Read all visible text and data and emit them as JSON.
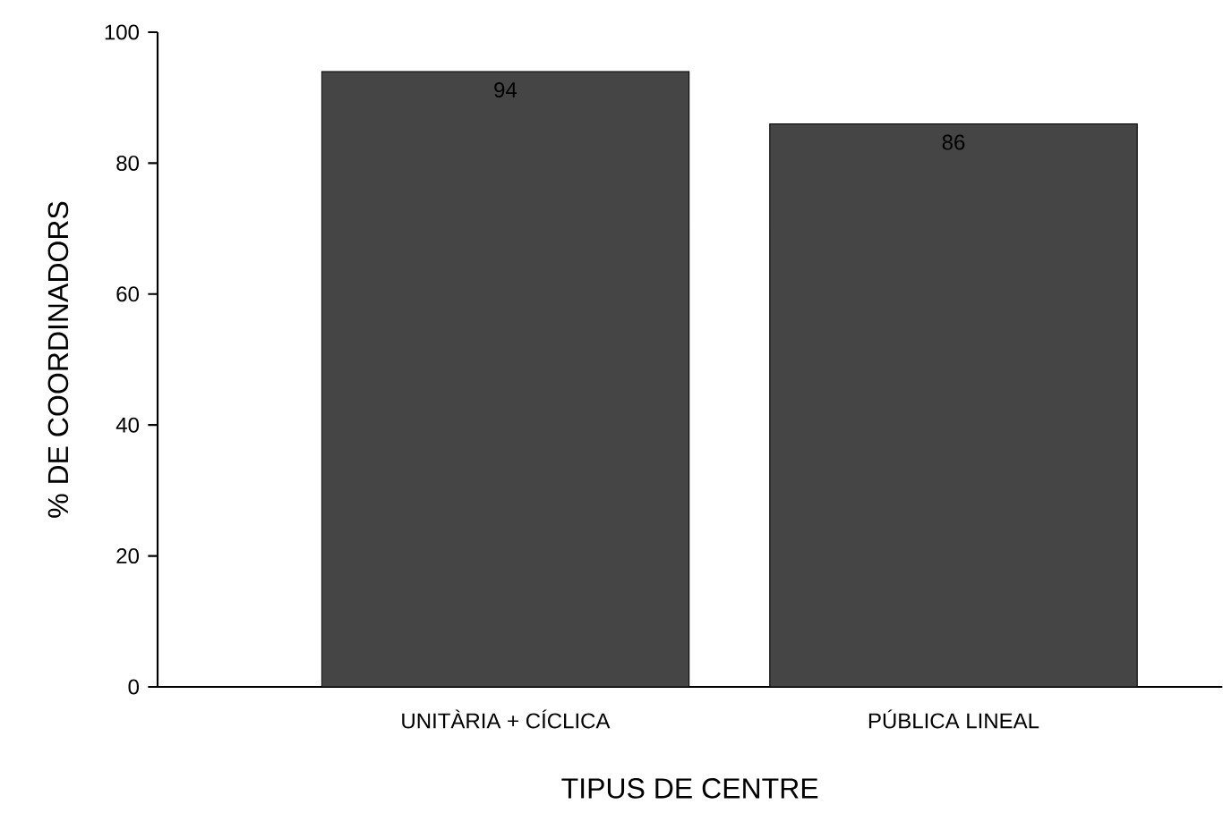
{
  "chart_data": {
    "type": "bar",
    "xlabel": "TIPUS DE CENTRE",
    "ylabel": "% DE COORDINADORS",
    "categories": [
      "UNITÀRIA + CÍCLICA",
      "PÚBLICA LINEAL"
    ],
    "values": [
      94,
      86
    ],
    "color": "#454545",
    "data_labels": true,
    "ylim": [
      0,
      100
    ],
    "yticks": [
      0,
      20,
      40,
      60,
      80,
      100
    ],
    "grid": false
  }
}
